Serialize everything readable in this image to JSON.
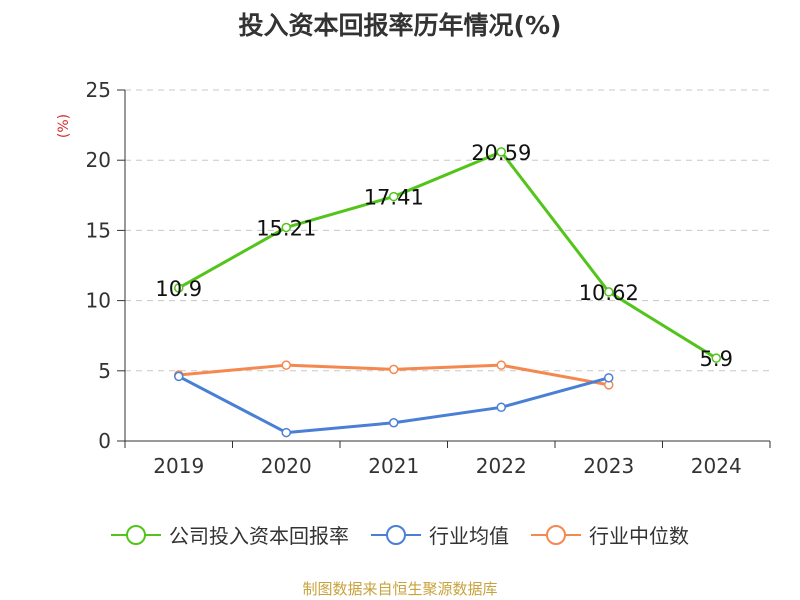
{
  "title": "投入资本回报率历年情况(%)",
  "source": "制图数据来自恒生聚源数据库",
  "chart_data": {
    "type": "line",
    "title": "投入资本回报率历年情况(%)",
    "ylabel": "(%)",
    "categories": [
      "2019",
      "2020",
      "2021",
      "2022",
      "2023",
      "2024"
    ],
    "ylim": [
      0,
      25
    ],
    "yticks": [
      0,
      5,
      10,
      15,
      20,
      25
    ],
    "grid": true,
    "legend_position": "bottom",
    "series": [
      {
        "name": "公司投入资本回报率",
        "color": "#52c41a",
        "values": [
          10.9,
          15.21,
          17.41,
          20.59,
          10.62,
          5.9
        ],
        "labels": [
          "10.9",
          "15.21",
          "17.41",
          "20.59",
          "10.62",
          "5.9"
        ]
      },
      {
        "name": "行业均值",
        "color": "#4a7fd6",
        "values": [
          4.6,
          0.6,
          1.3,
          2.4,
          4.5,
          null
        ]
      },
      {
        "name": "行业中位数",
        "color": "#f5884e",
        "values": [
          4.7,
          5.4,
          5.1,
          5.4,
          4.0,
          null
        ]
      }
    ]
  }
}
